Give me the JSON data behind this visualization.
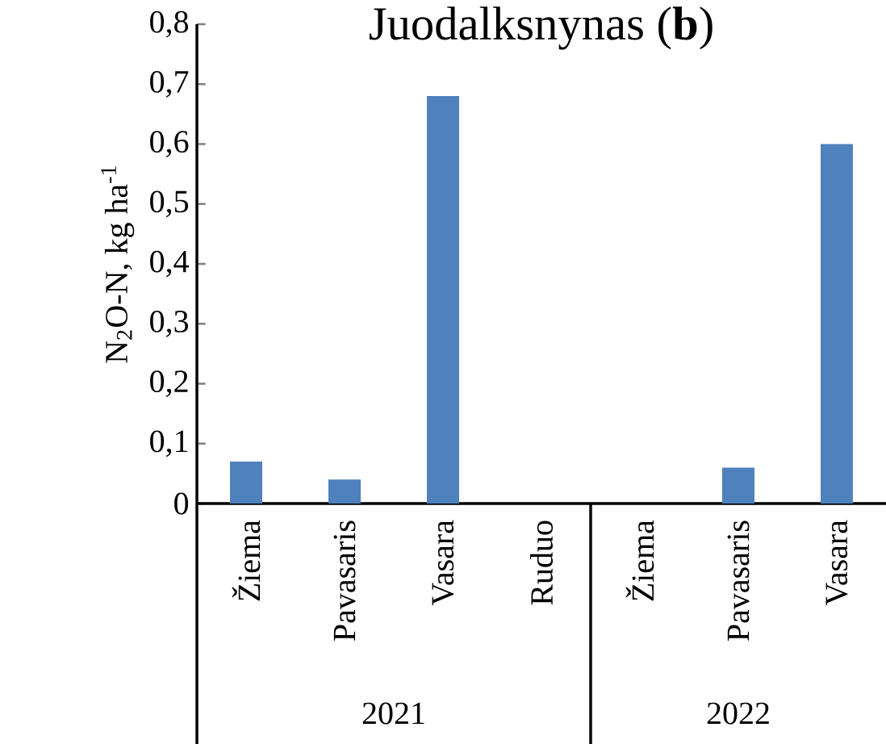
{
  "chart_data": {
    "type": "bar",
    "title": "Juodalksnynas (**b**)",
    "ylabel": "N$_{2}$O-N, kg ha$^{-1}$",
    "categories": [
      "Žiema",
      "Pavasaris",
      "Vasara",
      "Ruduo",
      "Žiema",
      "Pavasaris",
      "Vasara"
    ],
    "values": [
      0.07,
      0.04,
      0.68,
      0,
      0,
      0.06,
      0.6
    ],
    "color": "#4f81bd",
    "ylim": [
      0,
      0.8
    ],
    "yticks": [
      0,
      {
        "value": 0.1,
        "label": "0,1"
      },
      {
        "value": 0.2,
        "label": "0,2"
      },
      {
        "value": 0.3,
        "label": "0,3"
      },
      {
        "value": 0.4,
        "label": "0,4"
      },
      {
        "value": 0.5,
        "label": "0,5"
      },
      {
        "value": 0.6,
        "label": "0,6"
      },
      {
        "value": 0.7,
        "label": "0,7"
      },
      {
        "value": 0.8,
        "label": "0,8"
      }
    ],
    "annotations": [
      "2021",
      "2022"
    ],
    "grid": false
  }
}
